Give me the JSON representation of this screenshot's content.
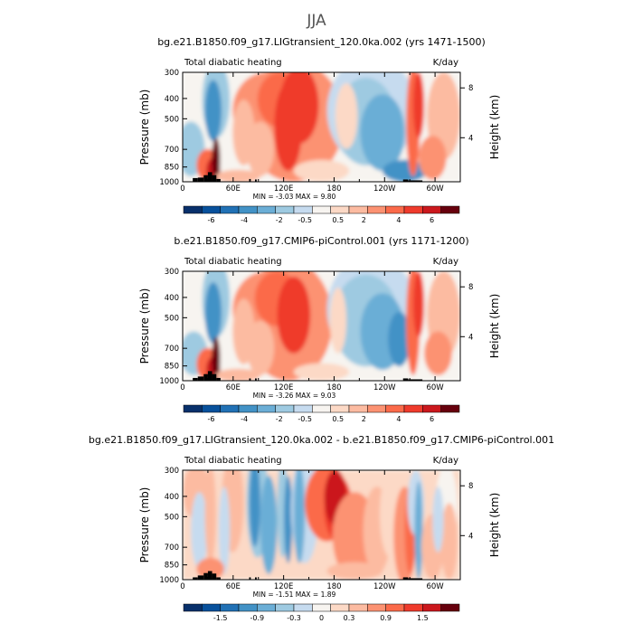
{
  "figure_title": "JJA",
  "colors": {
    "scale": [
      "#08306b",
      "#08519c",
      "#2171b5",
      "#4292c6",
      "#6baed6",
      "#9ecae1",
      "#c6dbef",
      "#f7f4f0",
      "#fcd9c6",
      "#fcbba1",
      "#fc9272",
      "#fb6a4a",
      "#ef3b2c",
      "#cb181d",
      "#67000d"
    ],
    "terrain": "#000000"
  },
  "chart_data": [
    {
      "type": "heatmap",
      "title": "bg.e21.B1850.f09_g17.LIGtransient_120.0ka.002 (yrs 1471-1500)",
      "left_label": "Total diabatic heating",
      "right_label": "K/day",
      "ylabel": "Pressure (mb)",
      "y2label": "Height (km)",
      "y_ticks": [
        "300",
        "400",
        "500",
        "700",
        "850",
        "1000"
      ],
      "y2_ticks": [
        "8",
        "4"
      ],
      "x_ticks": [
        "0",
        "60E",
        "120E",
        "180",
        "120W",
        "60W"
      ],
      "min_max": "MIN = -3.03  MAX = 9.80",
      "colorbar_labels": [
        "-6",
        "-4",
        "-2",
        "-0.5",
        "0.5",
        "2",
        "4",
        "6"
      ]
    },
    {
      "type": "heatmap",
      "title": "b.e21.B1850.f09_g17.CMIP6-piControl.001 (yrs 1171-1200)",
      "left_label": "Total diabatic heating",
      "right_label": "K/day",
      "ylabel": "Pressure (mb)",
      "y2label": "Height (km)",
      "y_ticks": [
        "300",
        "400",
        "500",
        "700",
        "850",
        "1000"
      ],
      "y2_ticks": [
        "8",
        "4"
      ],
      "x_ticks": [
        "0",
        "60E",
        "120E",
        "180",
        "120W",
        "60W"
      ],
      "min_max": "MIN = -3.26  MAX = 9.03",
      "colorbar_labels": [
        "-6",
        "-4",
        "-2",
        "-0.5",
        "0.5",
        "2",
        "4",
        "6"
      ]
    },
    {
      "type": "heatmap",
      "title": "bg.e21.B1850.f09_g17.LIGtransient_120.0ka.002 - b.e21.B1850.f09_g17.CMIP6-piControl.001",
      "left_label": "Total diabatic heating",
      "right_label": "K/day",
      "ylabel": "Pressure (mb)",
      "y2label": "Height (km)",
      "y_ticks": [
        "300",
        "400",
        "500",
        "700",
        "850",
        "1000"
      ],
      "y2_ticks": [
        "8",
        "4"
      ],
      "x_ticks": [
        "0",
        "60E",
        "120E",
        "180",
        "120W",
        "60W"
      ],
      "min_max": "MIN = -1.51  MAX = 1.89",
      "colorbar_labels": [
        "-1.5",
        "-0.9",
        "-0.3",
        "0",
        "0.3",
        "0.9",
        "1.5"
      ]
    }
  ]
}
